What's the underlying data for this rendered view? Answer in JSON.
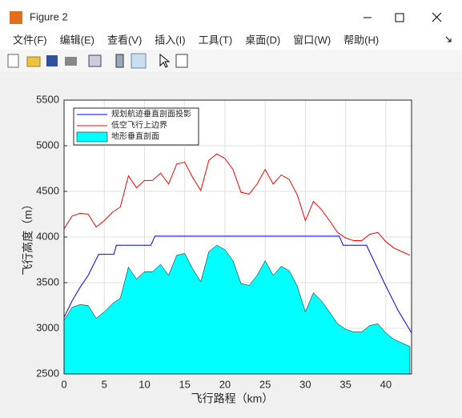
{
  "window": {
    "title": "Figure 2",
    "menu": [
      "文件(F)",
      "编辑(E)",
      "查看(V)",
      "插入(I)",
      "工具(T)",
      "桌面(D)",
      "窗口(W)",
      "帮助(H)"
    ]
  },
  "chart_data": {
    "type": "line",
    "xlabel": "飞行路程（km）",
    "ylabel": "飞行高度（m）",
    "xlim": [
      0,
      43.2
    ],
    "ylim": [
      2500,
      5500
    ],
    "xticks": [
      0,
      5,
      10,
      15,
      20,
      25,
      30,
      35,
      40
    ],
    "yticks": [
      2500,
      3000,
      3500,
      4000,
      4500,
      5000,
      5500
    ],
    "grid": true,
    "legend": "upper left",
    "x": [
      0,
      1,
      2,
      3,
      4,
      5,
      6,
      7,
      8,
      9,
      10,
      11,
      12,
      13,
      14,
      15,
      16,
      17,
      18,
      19,
      20,
      21,
      22,
      23,
      24,
      25,
      26,
      27,
      28,
      29,
      30,
      31,
      32,
      33,
      34,
      35,
      36,
      37,
      38,
      39,
      40,
      41,
      42,
      43
    ],
    "series": [
      {
        "name": "规划航迹垂直剖面投影",
        "color": "#0000ff",
        "kind": "line",
        "x": [
          0,
          1,
          2,
          3,
          4.3,
          6.2,
          6.5,
          10.8,
          11.3,
          34.2,
          34.7,
          37.6,
          39.8,
          41.5,
          43.2
        ],
        "values": [
          3120,
          3300,
          3450,
          3580,
          3810,
          3810,
          3910,
          3910,
          4010,
          4010,
          3910,
          3910,
          3500,
          3200,
          2950
        ]
      },
      {
        "name": "低空飞行上边界",
        "color": "#ff0000",
        "kind": "line",
        "values": [
          4090,
          4230,
          4260,
          4250,
          4110,
          4180,
          4270,
          4330,
          4670,
          4540,
          4620,
          4620,
          4700,
          4580,
          4800,
          4820,
          4650,
          4510,
          4840,
          4910,
          4860,
          4740,
          4490,
          4470,
          4580,
          4740,
          4580,
          4680,
          4630,
          4460,
          4180,
          4390,
          4300,
          4180,
          4050,
          3990,
          3960,
          3960,
          4030,
          4050,
          3950,
          3880,
          3840,
          3800
        ]
      },
      {
        "name": "地形垂直剖面",
        "color": "#00ffff",
        "kind": "area",
        "values": [
          3090,
          3230,
          3260,
          3250,
          3110,
          3180,
          3270,
          3330,
          3670,
          3540,
          3620,
          3620,
          3700,
          3580,
          3800,
          3820,
          3650,
          3510,
          3840,
          3910,
          3860,
          3740,
          3490,
          3470,
          3580,
          3740,
          3580,
          3680,
          3630,
          3460,
          3180,
          3390,
          3300,
          3180,
          3050,
          2990,
          2960,
          2960,
          3030,
          3050,
          2950,
          2880,
          2840,
          2800
        ]
      }
    ]
  }
}
